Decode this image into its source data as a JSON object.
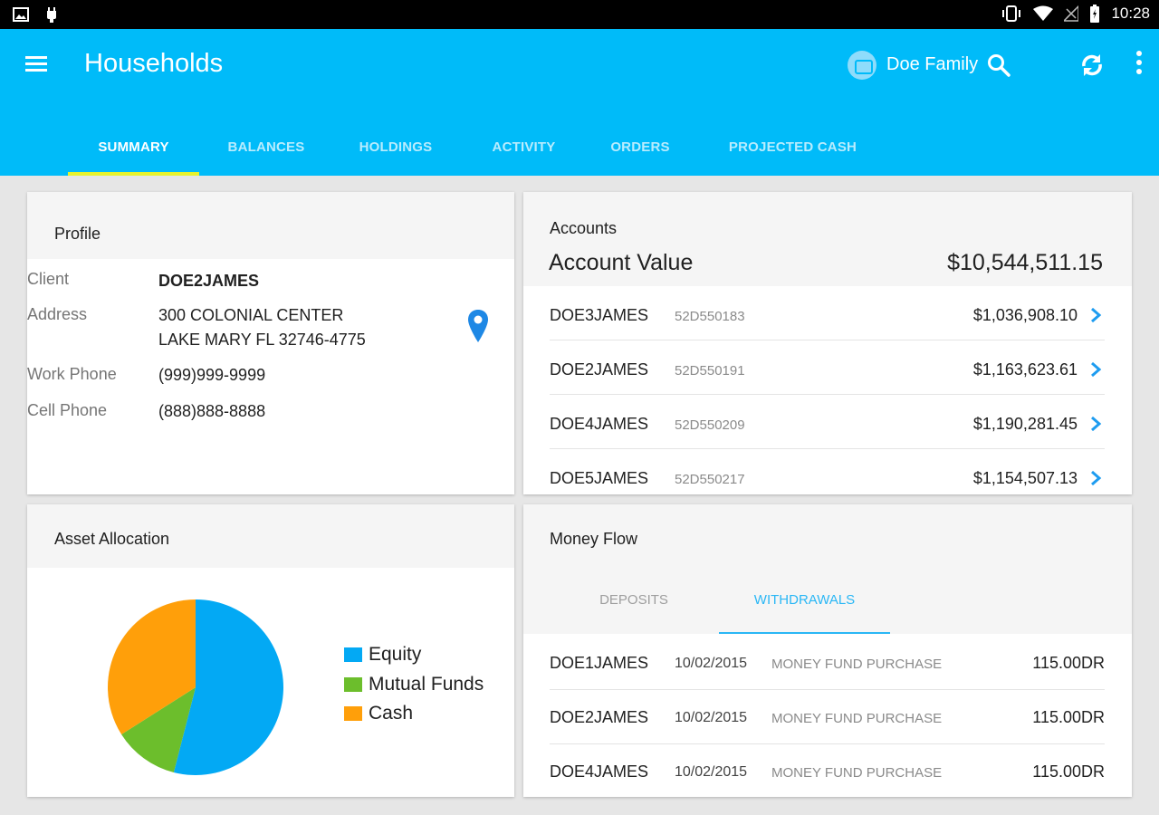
{
  "status_bar": {
    "time": "10:28"
  },
  "app_bar": {
    "title": "Households",
    "family_name": "Doe Family",
    "icons": [
      "menu-icon",
      "family-avatar-icon",
      "search-icon",
      "refresh-icon",
      "more-vert-icon"
    ]
  },
  "tabs": [
    {
      "label": "SUMMARY",
      "active": true
    },
    {
      "label": "BALANCES"
    },
    {
      "label": "HOLDINGS"
    },
    {
      "label": "ACTIVITY"
    },
    {
      "label": "ORDERS"
    },
    {
      "label": "PROJECTED CASH"
    }
  ],
  "profile": {
    "title": "Profile",
    "rows": [
      {
        "label": "Client",
        "value": "DOE2JAMES"
      },
      {
        "label": "Address",
        "value": "300 COLONIAL CENTER",
        "value2": "LAKE MARY FL 32746-4775"
      },
      {
        "label": "Work Phone",
        "value": "(999)999-9999"
      },
      {
        "label": "Cell Phone",
        "value": "(888)888-8888"
      }
    ]
  },
  "accounts": {
    "title": "Accounts",
    "value_label": "Account Value",
    "value": "$10,544,511.15",
    "rows": [
      {
        "name": "DOE3JAMES",
        "number": "52D550183",
        "amount": "$1,036,908.10"
      },
      {
        "name": "DOE2JAMES",
        "number": "52D550191",
        "amount": "$1,163,623.61"
      },
      {
        "name": "DOE4JAMES",
        "number": "52D550209",
        "amount": "$1,190,281.45"
      },
      {
        "name": "DOE5JAMES",
        "number": "52D550217",
        "amount": "$1,154,507.13"
      }
    ]
  },
  "asset_allocation": {
    "title": "Asset Allocation",
    "chart_data": {
      "type": "pie",
      "categories": [
        "Equity",
        "Mutual Funds",
        "Cash"
      ],
      "values": [
        54,
        12,
        34
      ],
      "colors": [
        "#03a9f4",
        "#6cbe2c",
        "#ff9f0a"
      ],
      "legend": "right"
    }
  },
  "money_flow": {
    "title": "Money Flow",
    "tabs": [
      {
        "label": "DEPOSITS"
      },
      {
        "label": "WITHDRAWALS",
        "active": true
      }
    ],
    "rows": [
      {
        "name": "DOE1JAMES",
        "date": "10/02/2015",
        "description": "MONEY FUND PURCHASE",
        "amount": "115.00DR"
      },
      {
        "name": "DOE2JAMES",
        "date": "10/02/2015",
        "description": "MONEY FUND PURCHASE",
        "amount": "115.00DR"
      },
      {
        "name": "DOE4JAMES",
        "date": "10/02/2015",
        "description": "MONEY FUND PURCHASE",
        "amount": "115.00DR"
      }
    ]
  }
}
